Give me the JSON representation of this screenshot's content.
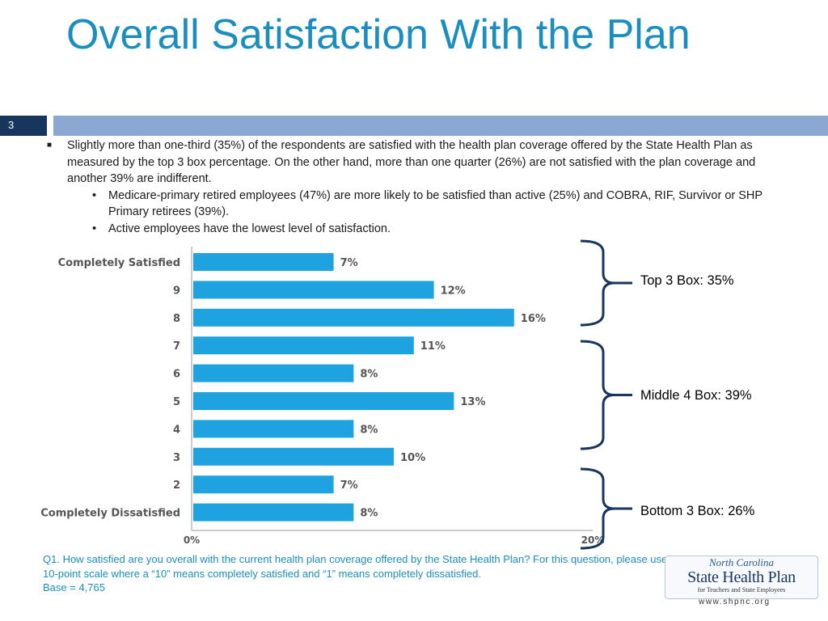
{
  "slide": {
    "title": "Overall Satisfaction With the Plan",
    "number": "3"
  },
  "bullets": {
    "main": "Slightly more than one-third (35%) of the respondents are satisfied with the health plan coverage offered by the State Health Plan as measured by the top 3 box percentage. On the other hand, more than one quarter (26%) are not satisfied with the plan coverage and another 39% are indifferent.",
    "sub": [
      "Medicare-primary retired employees (47%) are more likely to be satisfied than active (25%) and COBRA, RIF, Survivor or SHP Primary retirees (39%).",
      "Active employees have the lowest level of satisfaction."
    ]
  },
  "chart_data": {
    "type": "bar",
    "orientation": "horizontal",
    "categories": [
      "Completely Satisfied",
      "9",
      "8",
      "7",
      "6",
      "5",
      "4",
      "3",
      "2",
      "Completely Dissatisfied"
    ],
    "values": [
      7,
      12,
      16,
      11,
      8,
      13,
      8,
      10,
      7,
      8
    ],
    "value_labels": [
      "7%",
      "12%",
      "16%",
      "11%",
      "8%",
      "13%",
      "8%",
      "10%",
      "7%",
      "8%"
    ],
    "xlim": [
      0,
      20
    ],
    "x_tick_labels": [
      "0%",
      "20%"
    ],
    "bar_color": "#1fa3e0",
    "grid": false
  },
  "brackets": [
    {
      "label": "Top 3 Box: 35%"
    },
    {
      "label": "Middle 4 Box: 39%"
    },
    {
      "label": "Bottom 3 Box: 26%"
    }
  ],
  "footnote": {
    "question": "Q1. How satisfied are you overall with the current health plan coverage offered by the State Health Plan?  For this question, please use a 10-point scale where a “10” means completely satisfied and “1” means completely dissatisfied.",
    "base": "Base =  4,765"
  },
  "logo": {
    "line1": "North Carolina",
    "line2": "State Health Plan",
    "line3": "for Teachers and State Employees",
    "url": "www.shpnc.org"
  },
  "colors": {
    "title": "#1a8fbf",
    "strip_dark": "#17365d",
    "strip_light": "#8aa8d2",
    "bracket": "#17365d"
  }
}
